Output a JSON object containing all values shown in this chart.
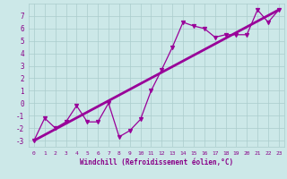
{
  "xlabel": "Windchill (Refroidissement éolien,°C)",
  "x_data": [
    0,
    1,
    2,
    3,
    4,
    5,
    6,
    7,
    8,
    9,
    10,
    11,
    12,
    13,
    14,
    15,
    16,
    17,
    18,
    19,
    20,
    21,
    22,
    23
  ],
  "y_data": [
    -3.0,
    -1.2,
    -2.0,
    -1.5,
    -0.2,
    -1.5,
    -1.5,
    0.0,
    -2.7,
    -2.2,
    -1.3,
    1.0,
    2.7,
    4.5,
    6.5,
    6.2,
    6.0,
    5.3,
    5.5,
    5.5,
    5.5,
    7.5,
    6.5,
    7.5
  ],
  "trend_x": [
    0,
    23
  ],
  "trend_y": [
    -3.0,
    7.5
  ],
  "line_color": "#990099",
  "bg_color": "#cce8e8",
  "grid_color": "#aacccc",
  "label_color": "#880088",
  "ylim": [
    -3.5,
    8.0
  ],
  "xlim": [
    -0.5,
    23.5
  ],
  "yticks": [
    -3,
    -2,
    -1,
    0,
    1,
    2,
    3,
    4,
    5,
    6,
    7
  ],
  "xticks": [
    0,
    1,
    2,
    3,
    4,
    5,
    6,
    7,
    8,
    9,
    10,
    11,
    12,
    13,
    14,
    15,
    16,
    17,
    18,
    19,
    20,
    21,
    22,
    23
  ]
}
